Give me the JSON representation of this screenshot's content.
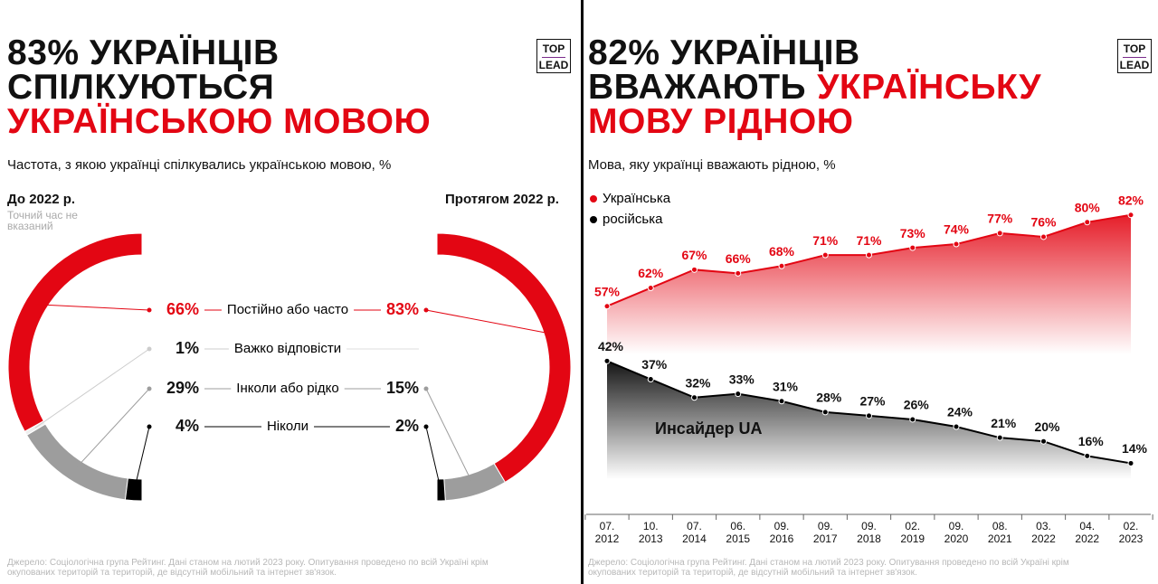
{
  "chart_data": [
    {
      "type": "half-donut",
      "title": [
        [
          {
            "text": "83% УКРАЇНЦІВ",
            "color": "#111111"
          }
        ],
        [
          {
            "text": "СПІЛКУЮТЬСЯ",
            "color": "#111111"
          }
        ],
        [
          {
            "text": "УКРАЇНСЬКОЮ МОВОЮ",
            "color": "#e30613"
          }
        ]
      ],
      "logo": [
        "TOP",
        "LEAD"
      ],
      "subtitle": "Частота, з якою українці спілкувались українською мовою, %",
      "categories": [
        "Постійно або часто",
        "Важко відповісти",
        "Інколи або рідко",
        "Ніколи"
      ],
      "colors": [
        "#e30613",
        "#eeeeee",
        "#9d9d9d",
        "#000000"
      ],
      "series": [
        {
          "name": "До 2022 р.",
          "note": "Точний час не вказаний",
          "values": [
            66,
            1,
            29,
            4
          ],
          "value_labels": [
            "66%",
            "1%",
            "29%",
            "4%"
          ]
        },
        {
          "name": "Протягом 2022 р.",
          "values": [
            83,
            null,
            15,
            2
          ],
          "value_labels": [
            "83%",
            null,
            "15%",
            "2%"
          ]
        }
      ],
      "source": "Джерело: Соціологічна група Рейтинг. Дані станом на лютий 2023 року. Опитування проведено по всій Україні крім окупованих територій та територій, де відсутній мобільний та інтернет зв'язок."
    },
    {
      "type": "line",
      "title": [
        [
          {
            "text": "82% УКРАЇНЦІВ",
            "color": "#111111"
          }
        ],
        [
          {
            "text": "ВВАЖАЮТЬ",
            "color": "#111111"
          },
          {
            "text": "УКРАЇНСЬКУ",
            "color": "#e30613"
          }
        ],
        [
          {
            "text": "МОВУ РІДНОЮ",
            "color": "#e30613"
          }
        ]
      ],
      "logo": [
        "TOP",
        "LEAD"
      ],
      "subtitle": "Мова, яку українці вважають рідною, %",
      "categories": [
        "07. 2012",
        "10. 2013",
        "07. 2014",
        "06. 2015",
        "09. 2016",
        "09. 2017",
        "09. 2018",
        "02. 2019",
        "09. 2020",
        "08. 2021",
        "03. 2022",
        "04. 2022",
        "02. 2023"
      ],
      "ylim": [
        0,
        100
      ],
      "series": [
        {
          "name": "Українська",
          "color": "#e30613",
          "values": [
            57,
            62,
            67,
            66,
            68,
            71,
            71,
            73,
            74,
            77,
            76,
            80,
            82
          ],
          "value_labels": [
            "57%",
            "62%",
            "67%",
            "66%",
            "68%",
            "71%",
            "71%",
            "73%",
            "74%",
            "77%",
            "76%",
            "80%",
            "82%"
          ]
        },
        {
          "name": "російська",
          "color": "#000000",
          "values": [
            42,
            37,
            32,
            33,
            31,
            28,
            27,
            26,
            24,
            21,
            20,
            16,
            14
          ],
          "value_labels": [
            "42%",
            "37%",
            "32%",
            "33%",
            "31%",
            "28%",
            "27%",
            "26%",
            "24%",
            "21%",
            "20%",
            "16%",
            "14%"
          ]
        }
      ],
      "watermark": "Инсайдер UA",
      "source": "Джерело: Соціологічна група Рейтинг. Дані станом на лютий 2023 року. Опитування проведено по всій Україні крім окупованих територій та територій, де відсутній мобільний та інтернет зв'язок."
    }
  ]
}
